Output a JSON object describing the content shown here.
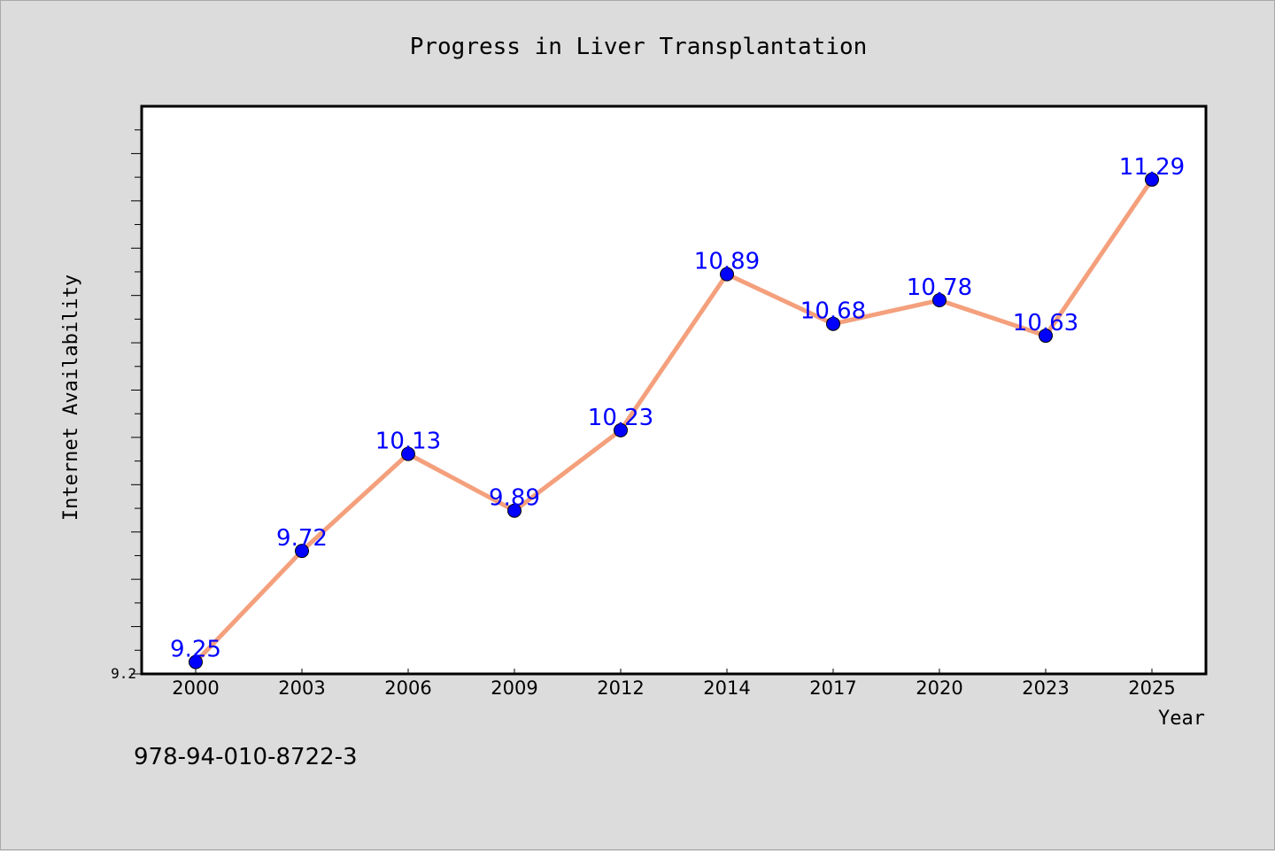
{
  "chart_data": {
    "type": "line",
    "title": "Progress in Liver Transplantation",
    "xlabel": "Year",
    "ylabel": "Internet Availability",
    "categories": [
      "2000",
      "2003",
      "2006",
      "2009",
      "2012",
      "2014",
      "2017",
      "2020",
      "2023",
      "2025"
    ],
    "series": [
      {
        "values": [
          9.25,
          9.72,
          10.13,
          9.89,
          10.23,
          10.89,
          10.68,
          10.78,
          10.63,
          11.29
        ]
      }
    ],
    "data_labels": [
      "9.25",
      "9.72",
      "10.13",
      "9.89",
      "10.23",
      "10.89",
      "10.68",
      "10.78",
      "10.63",
      "11.29"
    ],
    "y_tick_labels": [
      "9.2"
    ],
    "ylim": [
      9.2,
      11.6
    ],
    "grid": false,
    "legend": false,
    "colors": {
      "line": "#f4a07c",
      "marker": "#0000ff",
      "data_label": "#0000ff",
      "background": "#dcdcdc",
      "plot_area": "#ffffff"
    }
  },
  "footer": {
    "code": "978-94-010-8722-3"
  }
}
